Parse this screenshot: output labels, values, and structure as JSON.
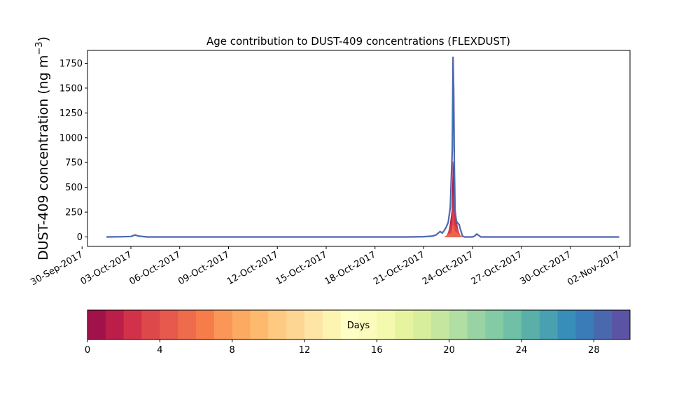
{
  "chart_data": [
    {
      "type": "area",
      "title": "Age contribution to DUST-409 concentrations (FLEXDUST)",
      "xlabel": "",
      "ylabel_main": "DUST-409 concentration (ng m",
      "ylabel_sup": "−3",
      "ylabel_close": ")",
      "ylim": [
        -95,
        1880
      ],
      "yticks": [
        0,
        250,
        500,
        750,
        1000,
        1250,
        1500,
        1750
      ],
      "ytick_labels": [
        "0",
        "250",
        "500",
        "750",
        "1000",
        "1250",
        "1500",
        "1750"
      ],
      "xlim": [
        "2017-09-30T08:00",
        "2017-11-02T16:00"
      ],
      "xticks": [
        "2017-09-30",
        "2017-10-03",
        "2017-10-06",
        "2017-10-09",
        "2017-10-12",
        "2017-10-15",
        "2017-10-18",
        "2017-10-21",
        "2017-10-24",
        "2017-10-27",
        "2017-10-30",
        "2017-11-02"
      ],
      "xtick_labels": [
        "30-Sep-2017",
        "03-Oct-2017",
        "06-Oct-2017",
        "09-Oct-2017",
        "12-Oct-2017",
        "15-Oct-2017",
        "18-Oct-2017",
        "21-Oct-2017",
        "24-Oct-2017",
        "27-Oct-2017",
        "30-Oct-2017",
        "02-Nov-2017"
      ],
      "grid": false,
      "total_series": {
        "x": [
          "2017-10-01T12:00",
          "2017-10-02T12:00",
          "2017-10-03T00:00",
          "2017-10-03T03:00",
          "2017-10-03T06:00",
          "2017-10-03T12:00",
          "2017-10-04T00:00",
          "2017-10-10T00:00",
          "2017-10-16T00:00",
          "2017-10-20T00:00",
          "2017-10-21T00:00",
          "2017-10-21T12:00",
          "2017-10-21T18:00",
          "2017-10-22T00:00",
          "2017-10-22T03:00",
          "2017-10-22T06:00",
          "2017-10-22T09:00",
          "2017-10-22T12:00",
          "2017-10-22T15:00",
          "2017-10-22T18:00",
          "2017-10-22T19:00",
          "2017-10-22T20:00",
          "2017-10-22T21:00",
          "2017-10-22T22:00",
          "2017-10-23T00:00",
          "2017-10-23T02:00",
          "2017-10-23T04:00",
          "2017-10-23T06:00",
          "2017-10-23T09:00",
          "2017-10-23T12:00",
          "2017-10-23T18:00",
          "2017-10-24T00:00",
          "2017-10-24T03:00",
          "2017-10-24T06:00",
          "2017-10-24T09:00",
          "2017-10-24T12:00",
          "2017-10-25T00:00",
          "2017-10-28T00:00",
          "2017-11-01T00:00",
          "2017-11-02T00:00"
        ],
        "values": [
          0,
          2,
          5,
          12,
          20,
          8,
          0,
          0,
          0,
          0,
          3,
          8,
          20,
          55,
          40,
          65,
          100,
          150,
          300,
          900,
          1810,
          1500,
          700,
          260,
          160,
          140,
          125,
          75,
          10,
          0,
          0,
          0,
          10,
          30,
          15,
          0,
          0,
          0,
          0,
          0
        ]
      },
      "colorbar_label": "Days",
      "peak_age_days": [
        0,
        1,
        2,
        3,
        5
      ],
      "peak_age_values": [
        760,
        600,
        430,
        250,
        120
      ]
    },
    {
      "type": "colorbar",
      "label": "Days",
      "range": [
        0,
        30
      ],
      "ticks": [
        0,
        4,
        8,
        12,
        16,
        20,
        24,
        28
      ],
      "tick_labels": [
        "0",
        "4",
        "8",
        "12",
        "16",
        "20",
        "24",
        "28"
      ],
      "colors": [
        "#a1114a",
        "#bb1e48",
        "#d23249",
        "#dd484b",
        "#e7594d",
        "#ee6b4b",
        "#f67d4a",
        "#f99658",
        "#fca962",
        "#fdba6e",
        "#fec981",
        "#fed694",
        "#fee5a5",
        "#fef4b1",
        "#fffec4",
        "#fbfcbb",
        "#f3faae",
        "#e6f4a0",
        "#d7ee9d",
        "#c5e69f",
        "#b1dea2",
        "#9ad3a3",
        "#83cba4",
        "#6fc0a6",
        "#5ab0a9",
        "#48a0b1",
        "#378eb8",
        "#3a7cb7",
        "#4a68ad",
        "#5b53a4"
      ]
    }
  ]
}
